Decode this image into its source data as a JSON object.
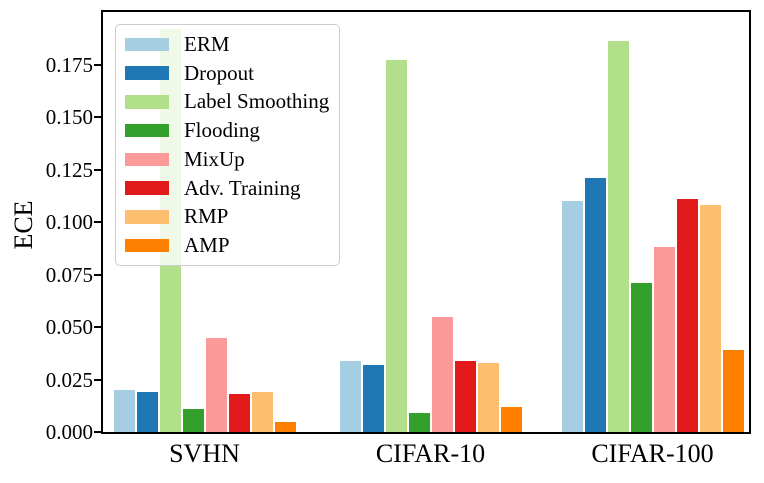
{
  "chart_data": {
    "type": "bar",
    "title": "",
    "xlabel": "",
    "ylabel": "ECE",
    "categories": [
      "SVHN",
      "CIFAR-10",
      "CIFAR-100"
    ],
    "series": [
      {
        "name": "ERM",
        "color": "#a6cee3",
        "values": [
          0.02,
          0.034,
          0.11
        ]
      },
      {
        "name": "Dropout",
        "color": "#1f78b4",
        "values": [
          0.019,
          0.032,
          0.121
        ]
      },
      {
        "name": "Label Smoothing",
        "color": "#b2df8a",
        "values": [
          0.192,
          0.177,
          0.186
        ]
      },
      {
        "name": "Flooding",
        "color": "#33a02c",
        "values": [
          0.011,
          0.009,
          0.071
        ]
      },
      {
        "name": "MixUp",
        "color": "#fb9a99",
        "values": [
          0.045,
          0.055,
          0.088
        ]
      },
      {
        "name": "Adv. Training",
        "color": "#e31a1c",
        "values": [
          0.018,
          0.034,
          0.111
        ]
      },
      {
        "name": "RMP",
        "color": "#fdbf6f",
        "values": [
          0.019,
          0.033,
          0.108
        ]
      },
      {
        "name": "AMP",
        "color": "#ff7f00",
        "values": [
          0.005,
          0.012,
          0.039
        ]
      }
    ],
    "ylim": [
      0,
      0.2
    ],
    "ytick_labels": [
      "0.000",
      "0.025",
      "0.050",
      "0.075",
      "0.100",
      "0.125",
      "0.150",
      "0.175"
    ],
    "legend_position": "upper left",
    "grid": false,
    "axis_color": "#000000",
    "legend_border_color": "#cccccc"
  }
}
